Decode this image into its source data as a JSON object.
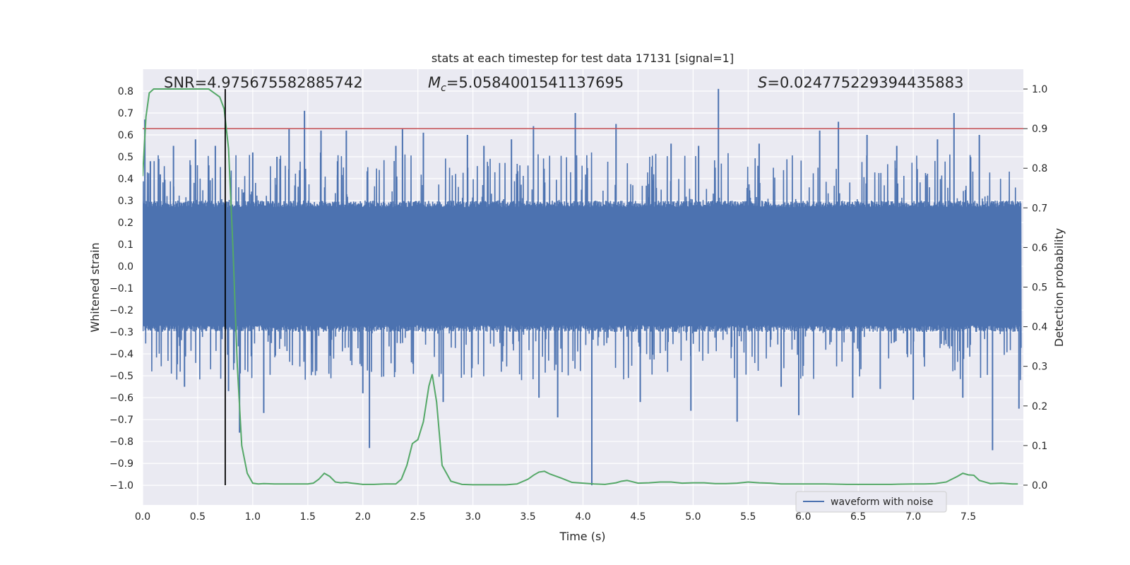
{
  "chart_data": {
    "type": "line",
    "title": "stats at each timestep for test data 17131 [signal=1]",
    "xlabel": "Time (s)",
    "ylabel_left": "Whitened strain",
    "ylabel_right": "Detection probability",
    "xlim": [
      0.0,
      8.0
    ],
    "ylim_left": [
      -1.09,
      0.9
    ],
    "ylim_right": [
      -0.05,
      1.05
    ],
    "x_ticks": [
      "0.0",
      "0.5",
      "1.0",
      "1.5",
      "2.0",
      "2.5",
      "3.0",
      "3.5",
      "4.0",
      "4.5",
      "5.0",
      "5.5",
      "6.0",
      "6.5",
      "7.0",
      "7.5"
    ],
    "x_tick_values": [
      0.0,
      0.5,
      1.0,
      1.5,
      2.0,
      2.5,
      3.0,
      3.5,
      4.0,
      4.5,
      5.0,
      5.5,
      6.0,
      6.5,
      7.0,
      7.5
    ],
    "y_left_ticks": [
      "0.8",
      "0.7",
      "0.6",
      "0.5",
      "0.4",
      "0.3",
      "0.2",
      "0.1",
      "0.0",
      "−0.1",
      "−0.2",
      "−0.3",
      "−0.4",
      "−0.5",
      "−0.6",
      "−0.7",
      "−0.8",
      "−0.9",
      "−1.0"
    ],
    "y_left_tick_values": [
      0.8,
      0.7,
      0.6,
      0.5,
      0.4,
      0.3,
      0.2,
      0.1,
      0.0,
      -0.1,
      -0.2,
      -0.3,
      -0.4,
      -0.5,
      -0.6,
      -0.7,
      -0.8,
      -0.9,
      -1.0
    ],
    "y_right_ticks": [
      "1.0",
      "0.9",
      "0.8",
      "0.7",
      "0.6",
      "0.5",
      "0.4",
      "0.3",
      "0.2",
      "0.1",
      "0.0"
    ],
    "y_right_tick_values": [
      1.0,
      0.9,
      0.8,
      0.7,
      0.6,
      0.5,
      0.4,
      0.3,
      0.2,
      0.1,
      0.0
    ],
    "annotations": {
      "snr": "SNR=4.975675582885742",
      "mc_symbol": "M",
      "mc_sub": "c",
      "mc_value": "=5.0584001541137695",
      "s_symbol": "S",
      "s_value": "=0.024775229394435883"
    },
    "threshold": {
      "value": 0.9,
      "axis": "right",
      "color": "#c44e52"
    },
    "vline": {
      "x": 0.75,
      "color": "#000000"
    },
    "legend": {
      "label": "waveform with noise",
      "placement": "lower-right"
    },
    "series": [
      {
        "name": "waveform with noise",
        "axis": "left",
        "color": "#4c72b0",
        "description": "noise trace, dense band approx ±0.27, spikes up to ~0.8 and down to ~-1.0",
        "spikes": [
          [
            0.02,
            0.67
          ],
          [
            0.07,
            0.48
          ],
          [
            0.16,
            0.42
          ],
          [
            0.28,
            0.55
          ],
          [
            0.48,
            0.58
          ],
          [
            0.66,
            0.55
          ],
          [
            0.78,
            -0.57
          ],
          [
            0.88,
            -0.76
          ],
          [
            1.0,
            0.52
          ],
          [
            1.1,
            -0.67
          ],
          [
            1.33,
            0.63
          ],
          [
            1.47,
            0.71
          ],
          [
            1.62,
            0.62
          ],
          [
            1.77,
            0.48
          ],
          [
            1.85,
            0.62
          ],
          [
            2.0,
            -0.58
          ],
          [
            2.06,
            -0.83
          ],
          [
            2.3,
            0.55
          ],
          [
            2.36,
            0.63
          ],
          [
            2.55,
            0.61
          ],
          [
            2.73,
            -0.62
          ],
          [
            2.95,
            0.6
          ],
          [
            3.35,
            0.58
          ],
          [
            3.55,
            0.64
          ],
          [
            3.6,
            -0.6
          ],
          [
            3.77,
            -0.69
          ],
          [
            3.93,
            0.7
          ],
          [
            4.08,
            -1.0
          ],
          [
            4.3,
            0.65
          ],
          [
            4.52,
            -0.62
          ],
          [
            4.8,
            0.56
          ],
          [
            4.98,
            -0.66
          ],
          [
            5.23,
            0.81
          ],
          [
            5.4,
            -0.71
          ],
          [
            5.6,
            0.56
          ],
          [
            5.8,
            -0.55
          ],
          [
            5.96,
            -0.68
          ],
          [
            6.15,
            0.62
          ],
          [
            6.45,
            -0.6
          ],
          [
            6.58,
            0.6
          ],
          [
            6.7,
            -0.56
          ],
          [
            6.85,
            0.55
          ],
          [
            7.0,
            -0.61
          ],
          [
            7.22,
            0.58
          ],
          [
            7.37,
            0.7
          ],
          [
            7.45,
            -0.6
          ],
          [
            7.72,
            -0.84
          ],
          [
            7.96,
            -0.65
          ],
          [
            7.6,
            0.6
          ],
          [
            6.32,
            0.66
          ],
          [
            5.05,
            0.55
          ],
          [
            3.1,
            0.55
          ],
          [
            1.22,
            0.5
          ],
          [
            0.38,
            -0.55
          ]
        ]
      },
      {
        "name": "detection probability",
        "axis": "right",
        "color": "#55a868",
        "x": [
          0.0,
          0.03,
          0.06,
          0.1,
          0.15,
          0.2,
          0.3,
          0.4,
          0.5,
          0.6,
          0.65,
          0.7,
          0.74,
          0.78,
          0.82,
          0.86,
          0.9,
          0.95,
          1.0,
          1.05,
          1.1,
          1.2,
          1.3,
          1.4,
          1.5,
          1.55,
          1.6,
          1.65,
          1.7,
          1.75,
          1.8,
          1.85,
          1.9,
          2.0,
          2.1,
          2.2,
          2.3,
          2.35,
          2.4,
          2.45,
          2.5,
          2.55,
          2.6,
          2.63,
          2.67,
          2.72,
          2.8,
          2.9,
          3.0,
          3.1,
          3.2,
          3.3,
          3.4,
          3.5,
          3.55,
          3.6,
          3.65,
          3.7,
          3.8,
          3.9,
          4.0,
          4.1,
          4.2,
          4.3,
          4.35,
          4.4,
          4.5,
          4.6,
          4.7,
          4.8,
          4.9,
          5.0,
          5.1,
          5.2,
          5.3,
          5.4,
          5.5,
          5.6,
          5.7,
          5.8,
          5.9,
          6.0,
          6.2,
          6.4,
          6.6,
          6.8,
          7.0,
          7.1,
          7.2,
          7.3,
          7.35,
          7.4,
          7.45,
          7.5,
          7.55,
          7.6,
          7.7,
          7.8,
          7.9,
          7.95
        ],
        "y": [
          0.78,
          0.93,
          0.99,
          1.0,
          1.0,
          1.0,
          1.0,
          1.0,
          1.0,
          1.0,
          0.99,
          0.98,
          0.95,
          0.85,
          0.6,
          0.3,
          0.1,
          0.03,
          0.005,
          0.003,
          0.004,
          0.003,
          0.003,
          0.003,
          0.003,
          0.005,
          0.015,
          0.03,
          0.022,
          0.008,
          0.006,
          0.007,
          0.005,
          0.002,
          0.002,
          0.003,
          0.003,
          0.015,
          0.05,
          0.105,
          0.115,
          0.16,
          0.25,
          0.28,
          0.21,
          0.05,
          0.01,
          0.002,
          0.001,
          0.001,
          0.001,
          0.001,
          0.003,
          0.015,
          0.025,
          0.033,
          0.035,
          0.028,
          0.018,
          0.007,
          0.005,
          0.003,
          0.002,
          0.006,
          0.01,
          0.012,
          0.005,
          0.006,
          0.008,
          0.008,
          0.005,
          0.006,
          0.006,
          0.004,
          0.004,
          0.005,
          0.008,
          0.006,
          0.005,
          0.003,
          0.003,
          0.003,
          0.003,
          0.002,
          0.002,
          0.002,
          0.003,
          0.003,
          0.004,
          0.008,
          0.015,
          0.022,
          0.03,
          0.026,
          0.025,
          0.012,
          0.004,
          0.005,
          0.003,
          0.003
        ]
      }
    ]
  }
}
